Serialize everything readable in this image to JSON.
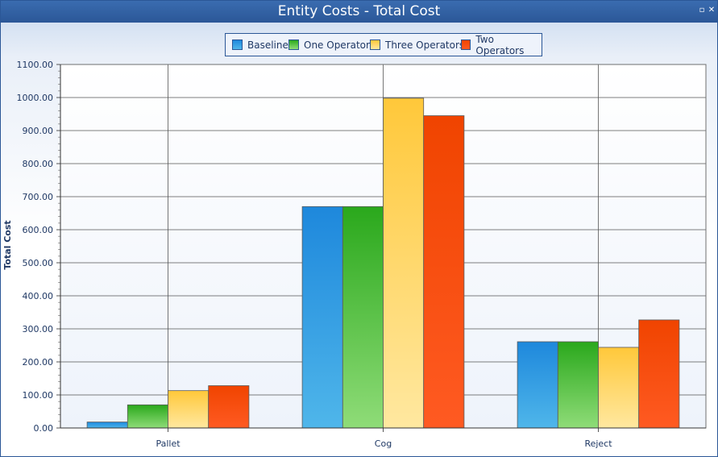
{
  "window": {
    "title": "Entity Costs - Total Cost",
    "restore_glyph": "▫",
    "close_glyph": "✕"
  },
  "colors": {
    "titlebar": "#2b5797",
    "axis_text": "#1f3864",
    "grid": "#555555"
  },
  "chart_data": {
    "type": "bar",
    "categories": [
      "Pallet",
      "Cog",
      "Reject"
    ],
    "series": [
      {
        "name": "Baseline",
        "values": [
          18,
          670,
          261
        ],
        "color_top": "#1e88dc",
        "color_bottom": "#4fb6ea"
      },
      {
        "name": "One Operator",
        "values": [
          70,
          670,
          261
        ],
        "color_top": "#2aa81c",
        "color_bottom": "#8fdc78"
      },
      {
        "name": "Three Operators",
        "values": [
          113,
          998,
          244
        ],
        "color_top": "#ffc83a",
        "color_bottom": "#ffe8a0"
      },
      {
        "name": "Two Operators",
        "values": [
          128,
          945,
          327
        ],
        "color_top": "#f04400",
        "color_bottom": "#ff5a22"
      }
    ],
    "xlabel": "",
    "ylabel": "Total Cost",
    "ylim": [
      0,
      1100
    ],
    "yticks": [
      "0.00",
      "100.00",
      "200.00",
      "300.00",
      "400.00",
      "500.00",
      "600.00",
      "700.00",
      "800.00",
      "900.00",
      "1000.00",
      "1100.00"
    ],
    "ytick_values": [
      0,
      100,
      200,
      300,
      400,
      500,
      600,
      700,
      800,
      900,
      1000,
      1100
    ],
    "grid": true,
    "legend_position": "top-center"
  }
}
